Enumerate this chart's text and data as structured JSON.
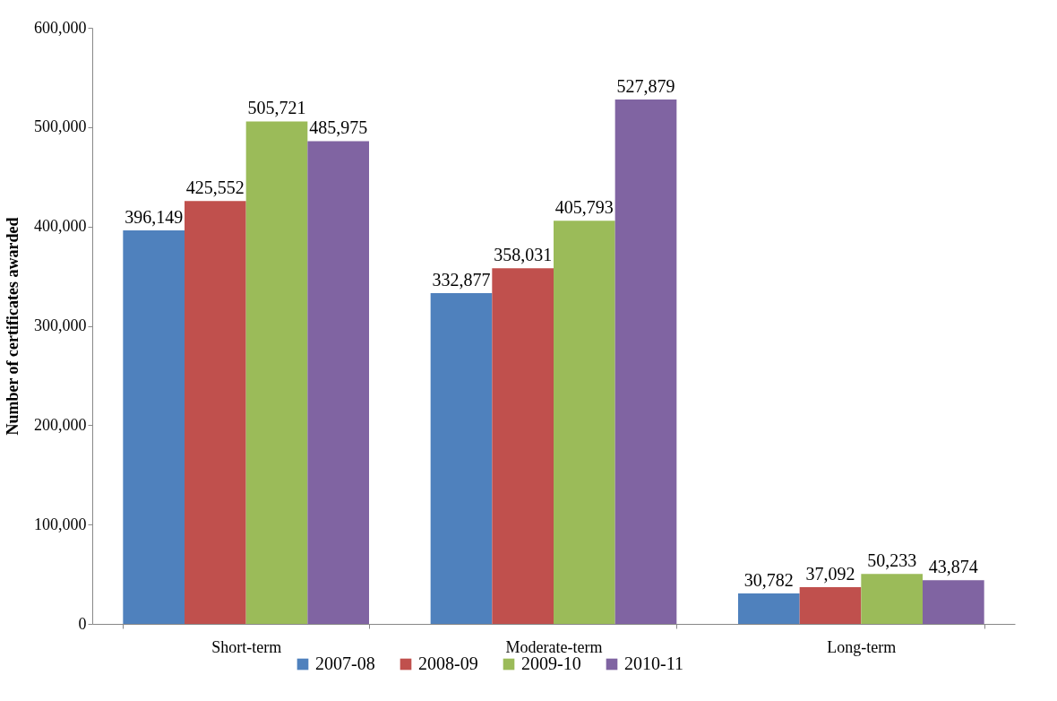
{
  "chart_data": {
    "type": "bar",
    "ylabel": "Number of certificates awarded",
    "categories": [
      "Short-term",
      "Moderate-term",
      "Long-term"
    ],
    "series": [
      {
        "name": "2007-08",
        "color": "#4f81bd",
        "values": [
          396149,
          332877,
          30782
        ],
        "value_labels": [
          "396,149",
          "332,877",
          "30,782"
        ]
      },
      {
        "name": "2008-09",
        "color": "#c0504d",
        "values": [
          425552,
          358031,
          37092
        ],
        "value_labels": [
          "425,552",
          "358,031",
          "37,092"
        ]
      },
      {
        "name": "2009-10",
        "color": "#9bbb59",
        "values": [
          505721,
          405793,
          50233
        ],
        "value_labels": [
          "505,721",
          "405,793",
          "50,233"
        ]
      },
      {
        "name": "2010-11",
        "color": "#8064a2",
        "values": [
          485975,
          527879,
          43874
        ],
        "value_labels": [
          "485,975",
          "527,879",
          "43,874"
        ]
      }
    ],
    "ylim": [
      0,
      600000
    ],
    "yticks": [
      0,
      {
        "value": 100000,
        "label": "100,000"
      },
      {
        "value": 200000,
        "label": "200,000"
      },
      {
        "value": 300000,
        "label": "300,000"
      },
      {
        "value": 400000,
        "label": "400,000"
      },
      {
        "value": 500000,
        "label": "500,000"
      },
      {
        "value": 600000,
        "label": "600,000"
      }
    ],
    "grid": false,
    "legend": "bottom"
  }
}
